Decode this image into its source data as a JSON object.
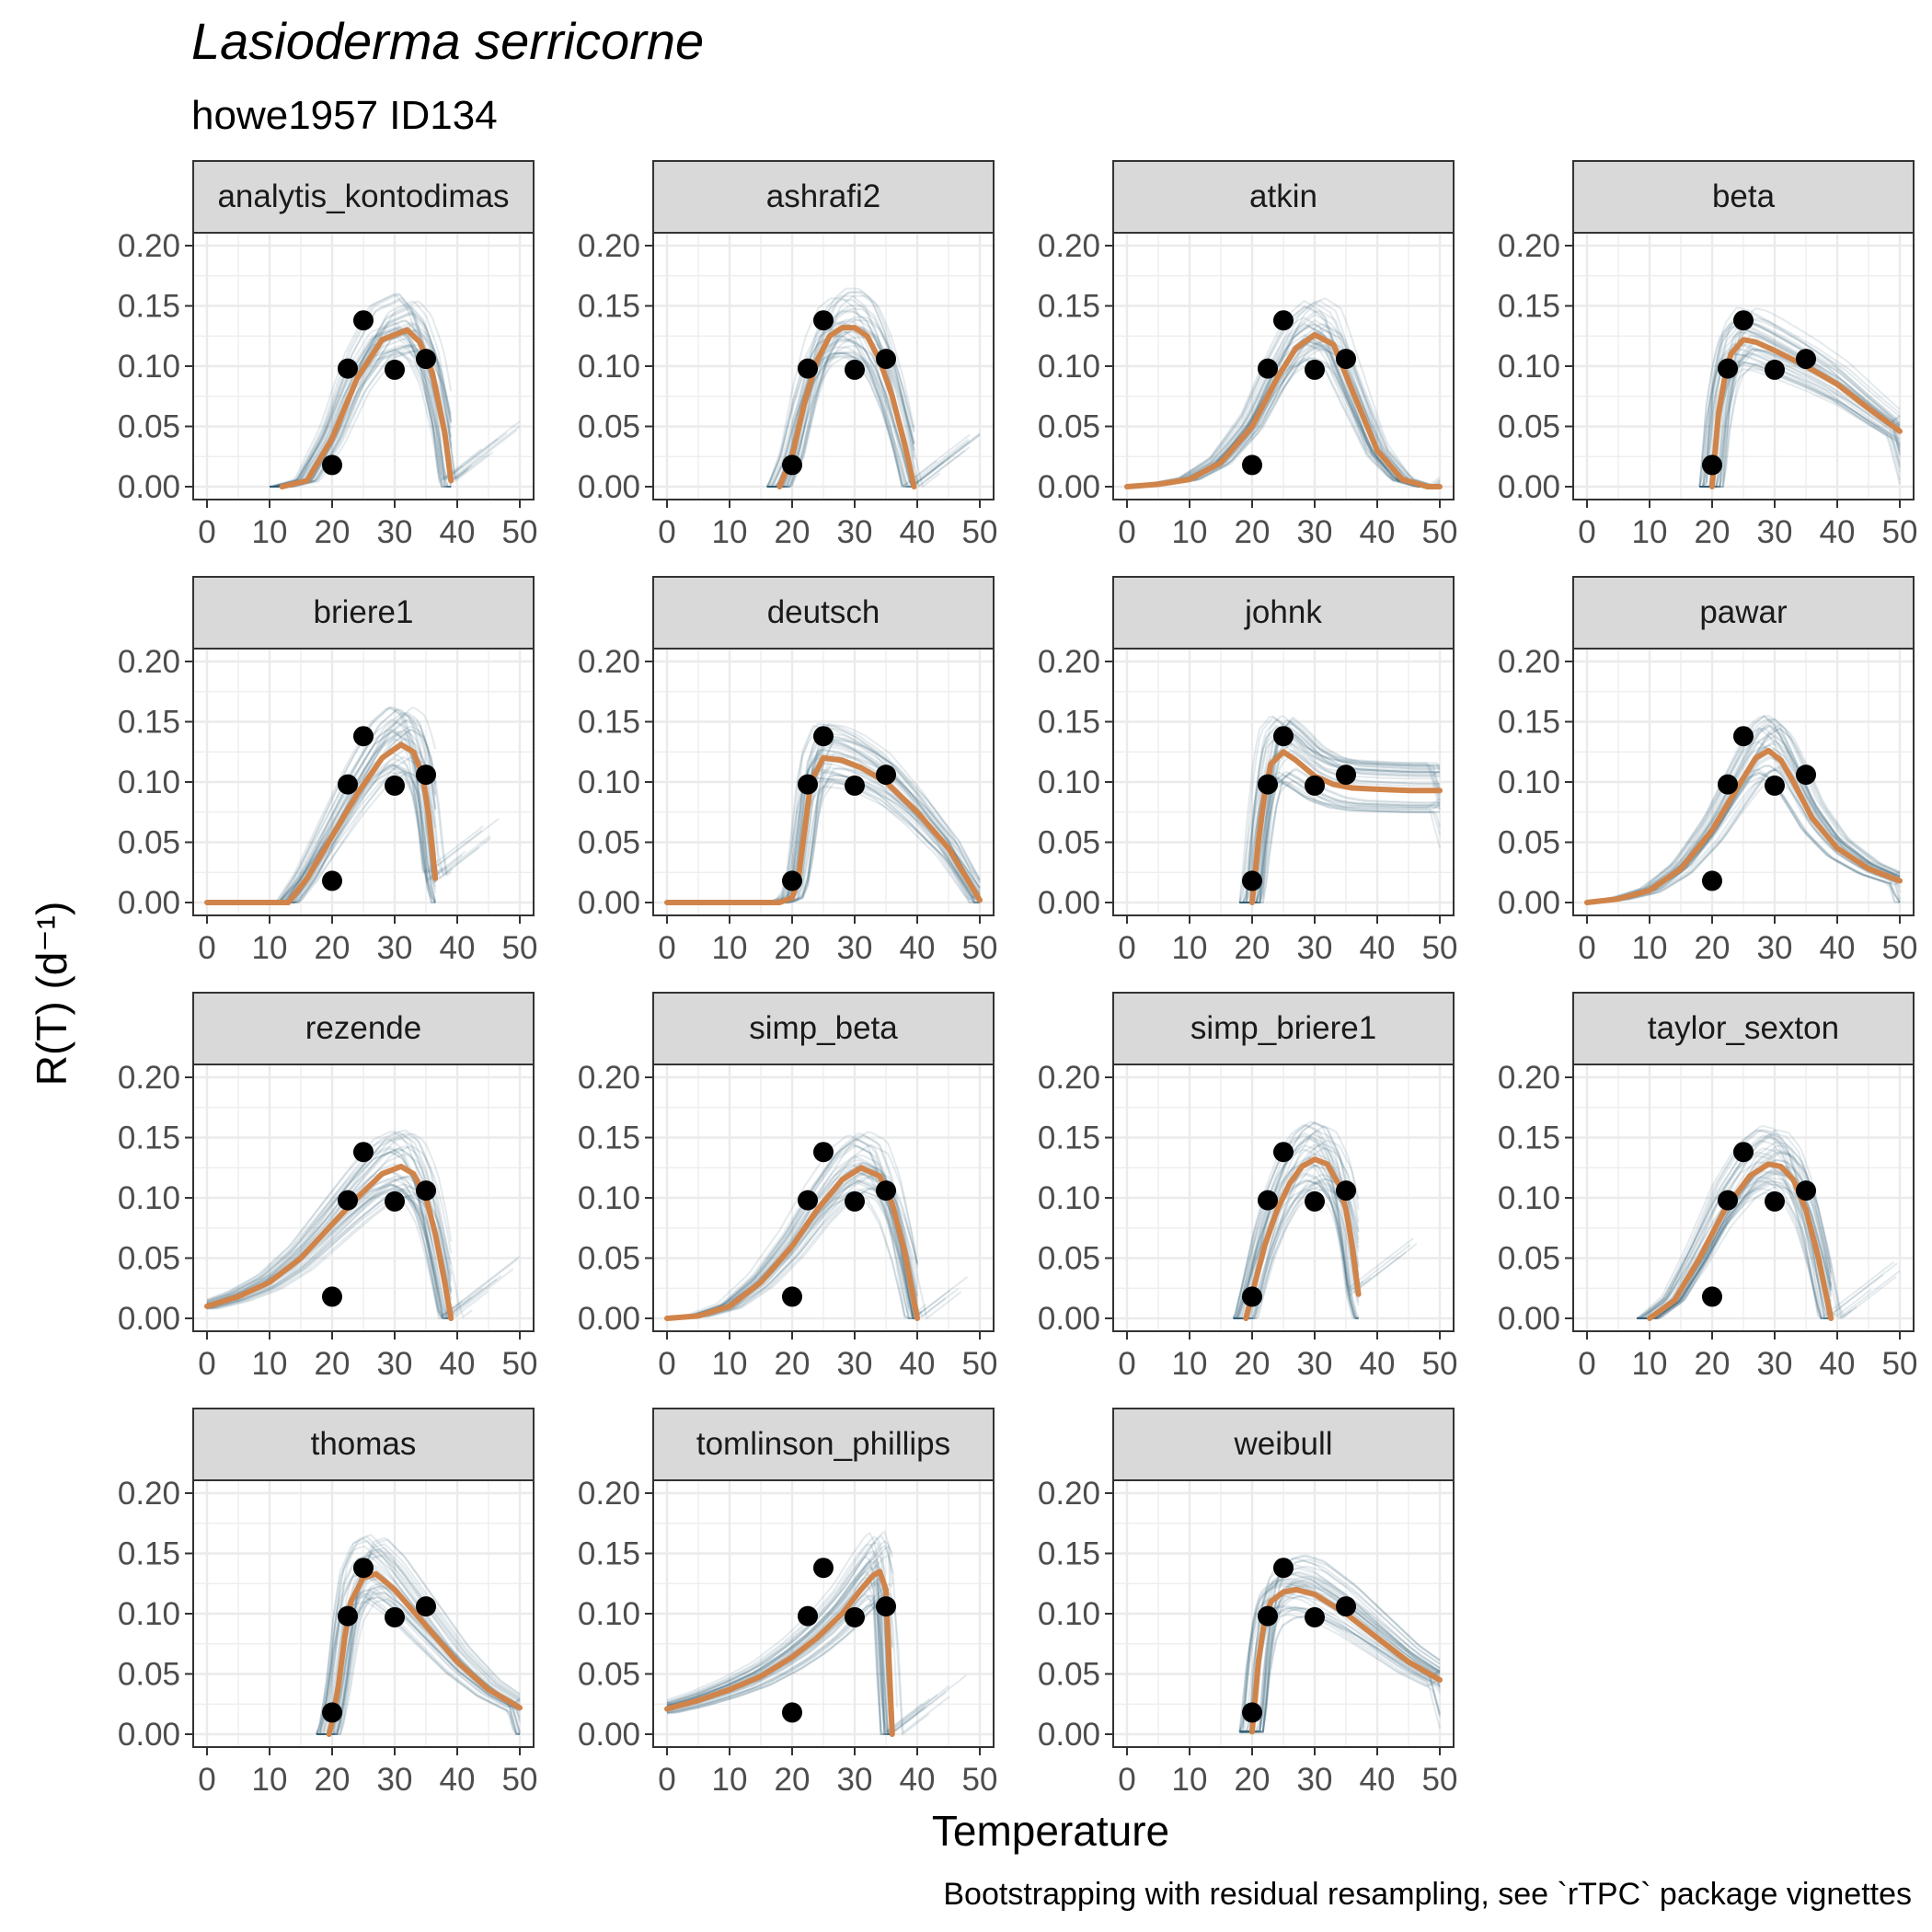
{
  "title": "Lasioderma serricorne",
  "subtitle": "howe1957 ID134",
  "x_axis_title": "Temperature",
  "y_axis_title": "R(T) (d⁻¹)",
  "caption": "Bootstrapping with residual resampling, see `rTPC` package vignettes",
  "colors": {
    "fit": "#D0844A",
    "bootstrap": "#2E5B73",
    "points": "#000000",
    "strip_fill": "#D9D9D9",
    "panel_border": "#333333",
    "grid": "#EBEBEB"
  },
  "chart_data": {
    "type": "line",
    "layout": "facet grid of 15 panels, 4 columns, 4 rows",
    "x_ticks": [
      "0",
      "10",
      "20",
      "30",
      "40",
      "50"
    ],
    "y_ticks": [
      "0.00",
      "0.05",
      "0.10",
      "0.15",
      "0.20"
    ],
    "xlim": [
      0,
      50
    ],
    "ylim": [
      0,
      0.2
    ],
    "grid": true,
    "observations": {
      "x": [
        20,
        22.5,
        25,
        30,
        35
      ],
      "y": [
        0.018,
        0.098,
        0.138,
        0.097,
        0.106
      ]
    },
    "panels": [
      {
        "model": "analytis_kontodimas",
        "fit": {
          "x": [
            12,
            16,
            20,
            24,
            28,
            32,
            34,
            36,
            38,
            39
          ],
          "y": [
            0,
            0.005,
            0.04,
            0.09,
            0.122,
            0.13,
            0.12,
            0.095,
            0.045,
            0.005
          ]
        }
      },
      {
        "model": "ashrafi2",
        "fit": {
          "x": [
            18,
            20,
            22,
            24,
            26,
            28,
            30,
            32,
            34,
            36,
            38,
            39.5
          ],
          "y": [
            0,
            0.025,
            0.07,
            0.105,
            0.125,
            0.132,
            0.132,
            0.125,
            0.105,
            0.075,
            0.035,
            0
          ]
        }
      },
      {
        "model": "atkin",
        "fit": {
          "x": [
            0,
            5,
            10,
            15,
            20,
            24,
            27,
            30,
            33,
            36,
            40,
            44,
            48,
            50
          ],
          "y": [
            0,
            0.002,
            0.006,
            0.02,
            0.05,
            0.09,
            0.115,
            0.126,
            0.118,
            0.08,
            0.03,
            0.006,
            0,
            0
          ]
        }
      },
      {
        "model": "beta",
        "fit": {
          "x": [
            20,
            21,
            22,
            23,
            25,
            27,
            30,
            35,
            40,
            45,
            50
          ],
          "y": [
            0,
            0.06,
            0.09,
            0.11,
            0.122,
            0.12,
            0.113,
            0.1,
            0.085,
            0.065,
            0.046
          ]
        }
      },
      {
        "model": "briere1",
        "fit": {
          "x": [
            0,
            13,
            16,
            20,
            24,
            28,
            31,
            33,
            34.5,
            35.5,
            36.5
          ],
          "y": [
            0,
            0,
            0.02,
            0.055,
            0.09,
            0.12,
            0.131,
            0.125,
            0.105,
            0.07,
            0.02
          ]
        }
      },
      {
        "model": "deutsch",
        "fit": {
          "x": [
            0,
            18,
            20,
            21,
            22,
            23,
            25,
            28,
            31,
            35,
            40,
            45,
            50
          ],
          "y": [
            0,
            0,
            0.004,
            0.02,
            0.06,
            0.1,
            0.12,
            0.118,
            0.112,
            0.1,
            0.075,
            0.045,
            0.002
          ]
        }
      },
      {
        "model": "johnk",
        "fit": {
          "x": [
            20,
            21,
            22,
            23,
            25,
            27,
            30,
            33,
            36,
            40,
            45,
            50
          ],
          "y": [
            0,
            0.05,
            0.09,
            0.115,
            0.125,
            0.118,
            0.105,
            0.098,
            0.095,
            0.094,
            0.093,
            0.093
          ]
        }
      },
      {
        "model": "pawar",
        "fit": {
          "x": [
            0,
            5,
            10,
            15,
            20,
            24,
            27,
            29,
            31,
            33,
            36,
            40,
            45,
            50
          ],
          "y": [
            0,
            0.003,
            0.01,
            0.028,
            0.06,
            0.095,
            0.12,
            0.126,
            0.118,
            0.1,
            0.07,
            0.045,
            0.028,
            0.018
          ]
        }
      },
      {
        "model": "rezende",
        "fit": {
          "x": [
            0,
            5,
            10,
            15,
            20,
            24,
            28,
            31,
            33,
            35,
            36.5,
            38,
            39
          ],
          "y": [
            0.01,
            0.018,
            0.03,
            0.05,
            0.078,
            0.1,
            0.12,
            0.126,
            0.12,
            0.1,
            0.07,
            0.03,
            0
          ]
        }
      },
      {
        "model": "simp_beta",
        "fit": {
          "x": [
            0,
            5,
            10,
            15,
            20,
            24,
            28,
            31,
            34,
            36,
            38,
            40
          ],
          "y": [
            0,
            0.002,
            0.01,
            0.03,
            0.06,
            0.09,
            0.115,
            0.125,
            0.118,
            0.095,
            0.055,
            0
          ]
        }
      },
      {
        "model": "simp_briere1",
        "fit": {
          "x": [
            19,
            20,
            22,
            24,
            26,
            28,
            30,
            32,
            34,
            35,
            36,
            37
          ],
          "y": [
            0,
            0.02,
            0.06,
            0.09,
            0.112,
            0.126,
            0.132,
            0.128,
            0.11,
            0.09,
            0.06,
            0.02
          ]
        }
      },
      {
        "model": "taylor_sexton",
        "fit": {
          "x": [
            10,
            14,
            18,
            22,
            26,
            29,
            31,
            33,
            35,
            37,
            39
          ],
          "y": [
            0,
            0.015,
            0.05,
            0.09,
            0.118,
            0.128,
            0.126,
            0.115,
            0.09,
            0.05,
            0
          ]
        }
      },
      {
        "model": "thomas",
        "fit": {
          "x": [
            19.5,
            20,
            21,
            22,
            23,
            25,
            27,
            30,
            35,
            40,
            45,
            50
          ],
          "y": [
            0,
            0.01,
            0.04,
            0.08,
            0.11,
            0.13,
            0.133,
            0.12,
            0.09,
            0.06,
            0.037,
            0.022
          ]
        }
      },
      {
        "model": "tomlinson_phillips",
        "fit": {
          "x": [
            0,
            5,
            10,
            15,
            20,
            24,
            28,
            31,
            33,
            34,
            35,
            35.5,
            36
          ],
          "y": [
            0.021,
            0.028,
            0.037,
            0.048,
            0.064,
            0.08,
            0.1,
            0.12,
            0.132,
            0.135,
            0.12,
            0.06,
            0
          ]
        }
      },
      {
        "model": "weibull",
        "fit": {
          "x": [
            20,
            21,
            22,
            23,
            25,
            27,
            30,
            35,
            40,
            45,
            50
          ],
          "y": [
            0.002,
            0.06,
            0.095,
            0.11,
            0.118,
            0.12,
            0.116,
            0.1,
            0.08,
            0.06,
            0.045
          ]
        }
      }
    ]
  }
}
